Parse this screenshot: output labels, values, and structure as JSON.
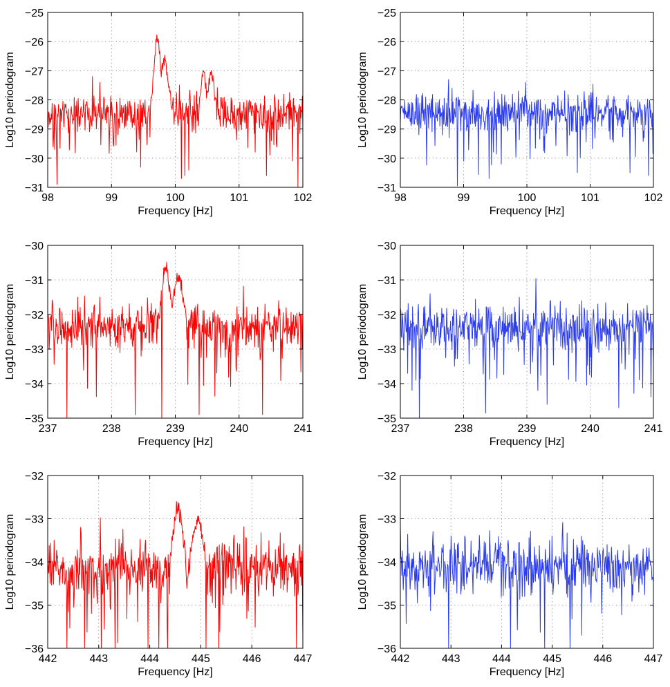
{
  "chart_data": [
    {
      "type": "line",
      "xlabel": "Frequency [Hz]",
      "ylabel": "Log10 periodogram",
      "xlim": [
        98,
        102
      ],
      "ylim": [
        -31,
        -25
      ],
      "xticks": [
        98,
        99,
        100,
        101,
        102
      ],
      "xtick_labels": [
        "98",
        "99",
        "100",
        "101",
        "102"
      ],
      "yticks": [
        -31,
        -30,
        -29,
        -28,
        -27,
        -26,
        -25
      ],
      "ytick_labels": [
        "−31",
        "−30",
        "−29",
        "−28",
        "−27",
        "−26",
        "−25"
      ],
      "grid": true,
      "series": [
        {
          "name": "red",
          "color": "#ff0000",
          "baseline": -28.45,
          "dip_floor": -31,
          "peaks": [
            {
              "center": 99.72,
              "height": 2.55,
              "width": 0.055
            },
            {
              "center": 99.83,
              "height": 1.8,
              "width": 0.06
            },
            {
              "center": 100.44,
              "height": 1.5,
              "width": 0.04
            },
            {
              "center": 100.56,
              "height": 1.3,
              "width": 0.05
            }
          ],
          "min_points": [
            [
              98.15,
              -30.9
            ],
            [
              100.1,
              -30.7
            ],
            [
              100.15,
              -30.6
            ],
            [
              101.43,
              -30.6
            ],
            [
              101.92,
              -31
            ]
          ],
          "max_points": [
            [
              98.7,
              -27.2
            ],
            [
              98.82,
              -27.4
            ],
            [
              98.88,
              -27.9
            ]
          ]
        }
      ]
    },
    {
      "type": "line",
      "xlabel": "Frequency [Hz]",
      "ylabel": "Log10 periodogram",
      "xlim": [
        98,
        102
      ],
      "ylim": [
        -31,
        -25
      ],
      "xticks": [
        98,
        99,
        100,
        101,
        102
      ],
      "xtick_labels": [
        "98",
        "99",
        "100",
        "101",
        "102"
      ],
      "yticks": [
        -31,
        -30,
        -29,
        -28,
        -27,
        -26,
        -25
      ],
      "ytick_labels": [
        "−31",
        "−30",
        "−29",
        "−28",
        "−27",
        "−26",
        "−25"
      ],
      "grid": true,
      "series": [
        {
          "name": "blue",
          "color": "#2b3cf0",
          "baseline": -28.45,
          "dip_floor": -31,
          "peaks": [],
          "min_points": [
            [
              98.9,
              -30.95
            ],
            [
              99.4,
              -30.7
            ],
            [
              100.8,
              -30.5
            ],
            [
              101.63,
              -30.5
            ],
            [
              101.92,
              -30.6
            ]
          ],
          "max_points": [
            [
              98.76,
              -27.3
            ],
            [
              98.82,
              -27.6
            ],
            [
              99.98,
              -27.4
            ],
            [
              99.6,
              -27.8
            ]
          ]
        }
      ]
    },
    {
      "type": "line",
      "xlabel": "Frequency [Hz]",
      "ylabel": "Log10 periodogram",
      "xlim": [
        237,
        241
      ],
      "ylim": [
        -35,
        -30
      ],
      "xticks": [
        237,
        238,
        239,
        240,
        241
      ],
      "xtick_labels": [
        "237",
        "238",
        "239",
        "240",
        "241"
      ],
      "yticks": [
        -35,
        -34,
        -33,
        -32,
        -31,
        -30
      ],
      "ytick_labels": [
        "−35",
        "−34",
        "−33",
        "−32",
        "−31",
        "−30"
      ],
      "grid": true,
      "series": [
        {
          "name": "red",
          "color": "#ff0000",
          "baseline": -32.4,
          "dip_floor": -35,
          "peaks": [
            {
              "center": 238.85,
              "height": 1.8,
              "width": 0.06
            },
            {
              "center": 239.05,
              "height": 1.5,
              "width": 0.07
            }
          ],
          "min_points": [
            [
              237.3,
              -35
            ],
            [
              238.37,
              -34.9
            ],
            [
              238.79,
              -35
            ],
            [
              239.37,
              -34.9
            ],
            [
              240.37,
              -34.9
            ]
          ],
          "max_points": [
            [
              237.47,
              -31.5
            ],
            [
              237.82,
              -31.5
            ],
            [
              239.35,
              -31.7
            ]
          ]
        }
      ]
    },
    {
      "type": "line",
      "xlabel": "Frequency [Hz]",
      "ylabel": "Log10 periodogram",
      "xlim": [
        237,
        241
      ],
      "ylim": [
        -35,
        -30
      ],
      "xticks": [
        237,
        238,
        239,
        240,
        241
      ],
      "xtick_labels": [
        "237",
        "238",
        "239",
        "240",
        "241"
      ],
      "yticks": [
        -35,
        -34,
        -33,
        -32,
        -31,
        -30
      ],
      "ytick_labels": [
        "−35",
        "−34",
        "−33",
        "−32",
        "−31",
        "−30"
      ],
      "grid": true,
      "series": [
        {
          "name": "blue",
          "color": "#2b3cf0",
          "baseline": -32.4,
          "dip_floor": -35,
          "peaks": [],
          "min_points": [
            [
              237.3,
              -35
            ],
            [
              238.35,
              -34.85
            ],
            [
              239.32,
              -34.6
            ],
            [
              240.45,
              -34.7
            ]
          ],
          "max_points": [
            [
              237.47,
              -31.4
            ],
            [
              238.88,
              -31.5
            ],
            [
              239.37,
              -31.6
            ],
            [
              239.87,
              -31.6
            ]
          ]
        }
      ]
    },
    {
      "type": "line",
      "xlabel": "Frequency [Hz]",
      "ylabel": "Log10 periodogram",
      "xlim": [
        442,
        447
      ],
      "ylim": [
        -36,
        -32
      ],
      "xticks": [
        442,
        443,
        444,
        445,
        446,
        447
      ],
      "xtick_labels": [
        "442",
        "443",
        "444",
        "445",
        "446",
        "447"
      ],
      "yticks": [
        -36,
        -35,
        -34,
        -33,
        -32
      ],
      "ytick_labels": [
        "−36",
        "−35",
        "−34",
        "−33",
        "−32"
      ],
      "grid": true,
      "series": [
        {
          "name": "red",
          "color": "#ff0000",
          "baseline": -34.15,
          "dip_floor": -36,
          "peaks": [
            {
              "center": 444.55,
              "height": 1.35,
              "width": 0.09
            },
            {
              "center": 444.95,
              "height": 1.0,
              "width": 0.1
            }
          ],
          "min_points": [
            [
              442.72,
              -36
            ],
            [
              443.05,
              -36
            ],
            [
              443.32,
              -36
            ],
            [
              444.18,
              -36
            ],
            [
              444.35,
              -36
            ],
            [
              445.1,
              -36
            ],
            [
              445.35,
              -36
            ]
          ],
          "max_points": [
            [
              442.65,
              -33.2
            ],
            [
              444.52,
              -32.6
            ]
          ]
        }
      ]
    },
    {
      "type": "line",
      "xlabel": "Frequency [Hz]",
      "ylabel": "Log10 periodogram",
      "xlim": [
        442,
        447
      ],
      "ylim": [
        -36,
        -32
      ],
      "xticks": [
        442,
        443,
        444,
        445,
        446,
        447
      ],
      "xtick_labels": [
        "442",
        "443",
        "444",
        "445",
        "446",
        "447"
      ],
      "yticks": [
        -36,
        -35,
        -34,
        -33,
        -32
      ],
      "ytick_labels": [
        "−36",
        "−35",
        "−34",
        "−33",
        "−32"
      ],
      "grid": true,
      "series": [
        {
          "name": "blue",
          "color": "#2b3cf0",
          "baseline": -34.1,
          "dip_floor": -36,
          "peaks": [],
          "min_points": [
            [
              442.65,
              -36
            ],
            [
              442.95,
              -36
            ],
            [
              444.18,
              -36
            ],
            [
              444.85,
              -36
            ],
            [
              445.35,
              -36
            ]
          ],
          "max_points": [
            [
              442.65,
              -33.3
            ],
            [
              443.0,
              -33.4
            ],
            [
              445.0,
              -33.4
            ]
          ]
        }
      ]
    }
  ]
}
